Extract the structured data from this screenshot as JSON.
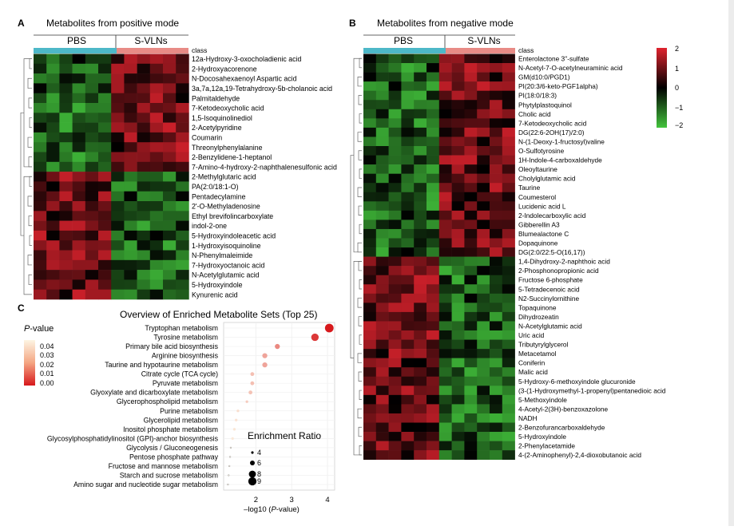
{
  "chart_data": [
    {
      "type": "heatmap",
      "panel_letter": "A",
      "title": "Metabolites from positive mode",
      "group_labels": [
        "PBS",
        "S-VLNs"
      ],
      "class_label": "class",
      "group_colors": [
        "#4db8c8",
        "#e88b86"
      ],
      "columns_per_group": [
        6,
        6
      ],
      "rows": [
        "12a-Hydroxy-3-oxocholadienic acid",
        "2-Hydroxyacorenone",
        "N-Docosahexaenoyl Aspartic acid",
        "3a,7a,12a,19-Tetrahydroxy-5b-cholanoic acid",
        "Palmitaldehyde",
        "7-Ketodeoxycholic acid",
        "1,5-Isoquinolinediol",
        "2-Acetylpyridine",
        "Coumarin",
        "Threonylphenylalanine",
        "2-Benzylidene-1-heptanol",
        "7-Amino-4-hydroxy-2-naphthalenesulfonic acid",
        "2-Methylglutaric acid",
        "PA(2:0/18:1-O)",
        "Pentadecylamine",
        "2'-O-Methyladenosine",
        "Ethyl brevifolincarboxylate",
        "indol-2-one",
        "5-Hydroxyindoleacetic acid",
        "1-Hydroxyisoquinoline",
        "N-Phenylmaleimide",
        "7-Hydroxyoctanoic acid",
        "N-Acetylglutamic acid",
        "5-Hydroxyindole",
        "Kynurenic acid"
      ],
      "row_trend": [
        -1,
        -1,
        -1,
        -1,
        -1,
        -1,
        -1,
        -1,
        -1,
        -1,
        -1,
        -1,
        1,
        1,
        1,
        1,
        1,
        1,
        1,
        1,
        1,
        1,
        1,
        1,
        1
      ]
    },
    {
      "type": "heatmap",
      "panel_letter": "B",
      "title": "Metabolites from negative mode",
      "group_labels": [
        "PBS",
        "S-VLNs"
      ],
      "class_label": "class",
      "group_colors": [
        "#4db8c8",
        "#e88b86"
      ],
      "columns_per_group": [
        6,
        6
      ],
      "color_scale": {
        "min": -2,
        "max": 2,
        "ticks": [
          "2",
          "1",
          "0",
          "−1",
          "−2"
        ],
        "colors": [
          "#e0232e",
          "#000000",
          "#43c43c"
        ]
      },
      "rows": [
        "Enterolactone 3''-sulfate",
        "N-Acetyl-7-O-acetylneuraminic acid",
        "GM(d10:0/PGD1)",
        "PI(20:3/6-keto-PGF1alpha)",
        "PI(18:0/18:3)",
        "Phytylplastoquinol",
        "Cholic acid",
        "7-Ketodeoxycholic acid",
        "DG(22:6-2OH(17)/2:0)",
        "N-(1-Deoxy-1-fructosyl)valine",
        "O-Sulfotyrosine",
        "1H-Indole-4-carboxaldehyde",
        "Oleoyltaurine",
        "Cholylglutamic acid",
        "Taurine",
        "Coumesterol",
        "Lucidenic acid L",
        "2-Indolecarboxylic acid",
        "Gibberellin A3",
        "Blumealactone C",
        "Dopaquinone",
        "DG(2:0/22:5-O(16,17))",
        "1,4-Dihydroxy-2-naphthoic acid",
        "2-Phosphonopropionic acid",
        "Fructose 6-phosphate",
        "5-Tetradecenoic acid",
        "N2-Succinylornithine",
        "Topaquinone",
        "Dihydrozeatin",
        "N-Acetylglutamic acid",
        "Uric acid",
        "Tributyrylglycerol",
        "Metacetamol",
        "Coniferin",
        "Malic acid",
        "5-Hydroxy-6-methoxyindole glucuronide",
        "(3-(1-Hydroxymethyl-1-propenyl)pentanedioic acid",
        "5-Methoxyindole",
        "4-Acetyl-2(3H)-benzoxazolone",
        "NADH",
        "2-Benzofurancarboxaldehyde",
        "5-Hydroxyindole",
        "2-Phenylacetamide",
        "4-(2-Aminophenyl)-2,4-dioxobutanoic acid"
      ],
      "row_trend": [
        -1,
        -1,
        -1,
        -1,
        -1,
        -1,
        -1,
        -1,
        -1,
        -1,
        -1,
        -1,
        -1,
        -1,
        -1,
        -1,
        -1,
        -1,
        -1,
        -1,
        -1,
        -1,
        1,
        1,
        1,
        1,
        1,
        1,
        1,
        1,
        1,
        1,
        1,
        1,
        1,
        1,
        1,
        1,
        1,
        1,
        1,
        1,
        1,
        1
      ]
    },
    {
      "type": "scatter",
      "panel_letter": "C",
      "title": "Overview of Enriched Metabolite Sets (Top 25)",
      "xlabel_prefix": "–log10 (",
      "xlabel_italic": "P",
      "xlabel_suffix": "-value)",
      "x_ticks": [
        2,
        3,
        4
      ],
      "xlim": [
        1.1,
        4.2
      ],
      "pathways": [
        {
          "name": "Tryptophan metabolism",
          "neglog10p": 4.05,
          "ratio": 9
        },
        {
          "name": "Tyrosine metabolism",
          "neglog10p": 3.65,
          "ratio": 8
        },
        {
          "name": "Primary bile acid biosynthesis",
          "neglog10p": 2.6,
          "ratio": 6
        },
        {
          "name": "Arginine biosynthesis",
          "neglog10p": 2.25,
          "ratio": 6
        },
        {
          "name": "Taurine and hypotaurine metabolism",
          "neglog10p": 2.25,
          "ratio": 6
        },
        {
          "name": "Citrate cycle (TCA cycle)",
          "neglog10p": 1.9,
          "ratio": 5
        },
        {
          "name": "Pyruvate metabolism",
          "neglog10p": 1.9,
          "ratio": 5
        },
        {
          "name": "Glyoxylate and dicarboxylate metabolism",
          "neglog10p": 1.85,
          "ratio": 5
        },
        {
          "name": "Glycerophospholipid metabolism",
          "neglog10p": 1.75,
          "ratio": 4
        },
        {
          "name": "Purine metabolism",
          "neglog10p": 1.5,
          "ratio": 4
        },
        {
          "name": "Glycerolipid metabolism",
          "neglog10p": 1.45,
          "ratio": 4
        },
        {
          "name": "Inositol phosphate metabolism",
          "neglog10p": 1.4,
          "ratio": 4
        },
        {
          "name": "Glycosylphosphatidylinositol (GPI)-anchor biosynthesis",
          "neglog10p": 1.35,
          "ratio": 4
        },
        {
          "name": "Glycolysis / Gluconeogenesis",
          "neglog10p": 1.3,
          "ratio": 3
        },
        {
          "name": "Pentose phosphate pathway",
          "neglog10p": 1.28,
          "ratio": 3
        },
        {
          "name": "Fructose and mannose metabolism",
          "neglog10p": 1.26,
          "ratio": 3
        },
        {
          "name": "Starch and sucrose metabolism",
          "neglog10p": 1.24,
          "ratio": 3
        },
        {
          "name": "Amino sugar and nucleotide sugar metabolism",
          "neglog10p": 1.22,
          "ratio": 3
        }
      ],
      "pvalue_legend": {
        "title_italic": "P",
        "title_suffix": "-value",
        "ticks": [
          "0.04",
          "0.03",
          "0.02",
          "0.01",
          "0.00"
        ]
      },
      "ratio_legend": {
        "title": "Enrichment Ratio",
        "values": [
          4,
          6,
          8,
          9
        ],
        "labels": [
          "4",
          "6",
          "8",
          "9"
        ]
      }
    }
  ]
}
